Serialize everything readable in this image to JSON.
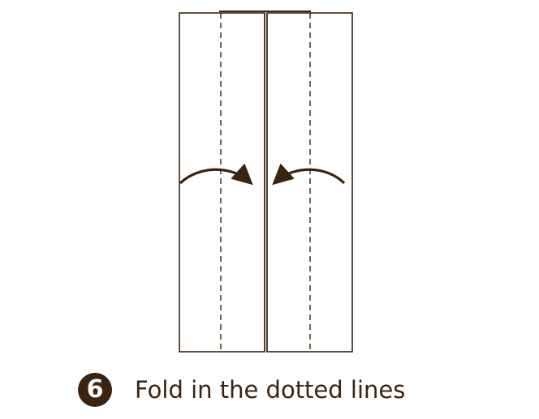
{
  "step": {
    "number": "6",
    "instruction": "Fold in the dotted lines"
  },
  "colors": {
    "ink": "#3a2410",
    "paper": "#ffffff"
  },
  "icons": {
    "left_arrow": "curved-arrow-right-icon",
    "right_arrow": "curved-arrow-left-icon"
  }
}
